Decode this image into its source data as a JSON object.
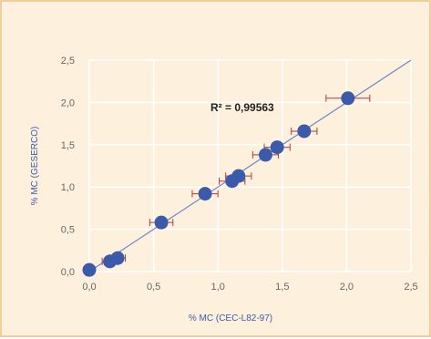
{
  "chart_data": {
    "type": "scatter",
    "title": "",
    "xlabel": "% MC  (CEC-L82-97)",
    "ylabel": "% MC  (GESERCO)",
    "xlim": [
      0,
      2.5
    ],
    "ylim": [
      0,
      2.5
    ],
    "x_ticks": [
      "0,0",
      "0,5",
      "1,0",
      "1,5",
      "2,0",
      "2,5"
    ],
    "y_ticks": [
      "0,0",
      "0,5",
      "1,0",
      "1,5",
      "2,0",
      "2,5"
    ],
    "grid": true,
    "legend": "none",
    "annotation": "R² = 0,99563",
    "trendline": {
      "from": [
        0,
        0
      ],
      "to": [
        2.5,
        2.5
      ]
    },
    "colors": {
      "points": "#3c5aaa",
      "line": "#6e86c6",
      "error_bars": "#b03a3a",
      "background": "#fdf1dd",
      "grid": "#ffffff"
    },
    "series": [
      {
        "points": [
          {
            "x": 0.0,
            "y": 0.02,
            "xerr": 0.0
          },
          {
            "x": 0.16,
            "y": 0.12,
            "xerr": 0.06
          },
          {
            "x": 0.22,
            "y": 0.16,
            "xerr": 0.06
          },
          {
            "x": 0.56,
            "y": 0.58,
            "xerr": 0.09
          },
          {
            "x": 0.9,
            "y": 0.92,
            "xerr": 0.1
          },
          {
            "x": 1.11,
            "y": 1.07,
            "xerr": 0.1
          },
          {
            "x": 1.16,
            "y": 1.13,
            "xerr": 0.1
          },
          {
            "x": 1.37,
            "y": 1.38,
            "xerr": 0.1
          },
          {
            "x": 1.46,
            "y": 1.47,
            "xerr": 0.1
          },
          {
            "x": 1.67,
            "y": 1.66,
            "xerr": 0.1
          },
          {
            "x": 2.01,
            "y": 2.05,
            "xerr": 0.17
          }
        ]
      }
    ]
  }
}
